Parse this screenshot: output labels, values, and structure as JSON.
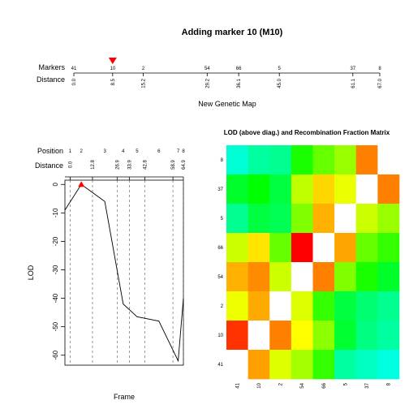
{
  "title": "Adding marker 10 (M10)",
  "map": {
    "markers_label": "Markers",
    "distance_label": "Distance",
    "xlabel": "New Genetic Map",
    "markers": [
      "41",
      "10",
      "2",
      "54",
      "66",
      "5",
      "37",
      "8"
    ],
    "distances": [
      0.0,
      8.5,
      15.2,
      29.2,
      36.1,
      45.0,
      61.1,
      67.0
    ],
    "distance_labels": [
      "0.0",
      "8.5",
      "15.2",
      "29.2",
      "36.1",
      "45.0",
      "61.1",
      "67.0"
    ],
    "highlight_marker": "10",
    "highlight_color": "#ff0000"
  },
  "chart_data": [
    {
      "type": "line",
      "xlabel": "Frame",
      "ylabel": "LOD",
      "position_label": "Position",
      "distance_label": "Distance",
      "positions": [
        "1",
        "2",
        "3",
        "4",
        "5",
        "6",
        "7",
        "8"
      ],
      "x": [
        0.0,
        12.8,
        26.9,
        33.9,
        42.8,
        58.9,
        64.9
      ],
      "x_labels": [
        "0.0",
        "12.8",
        "26.9",
        "33.9",
        "42.8",
        "58.9",
        "64.9"
      ],
      "position_x": [
        0.0,
        6.4,
        19.85,
        30.4,
        38.35,
        50.85,
        61.9,
        64.9
      ],
      "series": [
        {
          "x": [
            -3,
            6.4,
            19.85,
            30.4,
            38.35,
            50.85,
            61.9,
            64.9
          ],
          "values": [
            -9,
            0,
            -6,
            -42,
            -46.5,
            -48,
            -62,
            -40
          ]
        }
      ],
      "best_x": 6.4,
      "best_y": 0,
      "best_color": "#ff0000",
      "xlim": [
        -3,
        64.9
      ],
      "ylim": [
        -63.5,
        1.5
      ],
      "y_ticks": [
        0,
        -10,
        -20,
        -30,
        -40,
        -50,
        -60
      ],
      "y_tick_labels": [
        "0",
        "-10",
        "-20",
        "-30",
        "-40",
        "-50",
        "-60"
      ]
    },
    {
      "type": "heatmap",
      "title": "LOD (above diag.) and Recombination Fraction Matrix",
      "x_labels": [
        "41",
        "10",
        "2",
        "54",
        "66",
        "5",
        "37",
        "8"
      ],
      "y_labels": [
        "8",
        "37",
        "5",
        "66",
        "54",
        "2",
        "10",
        "41"
      ],
      "colors": [
        [
          "#00ffd5",
          "#00ffa0",
          "#00ff90",
          "#1aff00",
          "#66ff00",
          "#99ff00",
          "#ff7f00",
          "#ffffff"
        ],
        [
          "#00ff2a",
          "#00ff00",
          "#00ff40",
          "#bfff00",
          "#ffd700",
          "#eaff00",
          "#ffffff",
          "#ff7f00"
        ],
        [
          "#00ff90",
          "#00ff40",
          "#00ff55",
          "#80ff00",
          "#ffb000",
          "#ffffff",
          "#ccff00",
          "#99ff00"
        ],
        [
          "#ccff00",
          "#ffe500",
          "#66ff00",
          "#ff0000",
          "#ffffff",
          "#ffa500",
          "#66ff00",
          "#33ff00"
        ],
        [
          "#ffb000",
          "#ff8c00",
          "#ccff00",
          "#ffffff",
          "#ff8000",
          "#80ff00",
          "#1aff00",
          "#00ff2a"
        ],
        [
          "#eeff00",
          "#ffaa00",
          "#ffffff",
          "#ddff00",
          "#33ff00",
          "#00ff40",
          "#00ff70",
          "#00ff90"
        ],
        [
          "#ff3300",
          "#ffffff",
          "#ff8000",
          "#ffff00",
          "#8cff00",
          "#00ff30",
          "#00ff80",
          "#00ffa0"
        ],
        [
          "#ffffff",
          "#ffa000",
          "#ddff00",
          "#a6ff00",
          "#33ff00",
          "#00ffa0",
          "#00ffc0",
          "#00ffe0"
        ]
      ]
    }
  ]
}
